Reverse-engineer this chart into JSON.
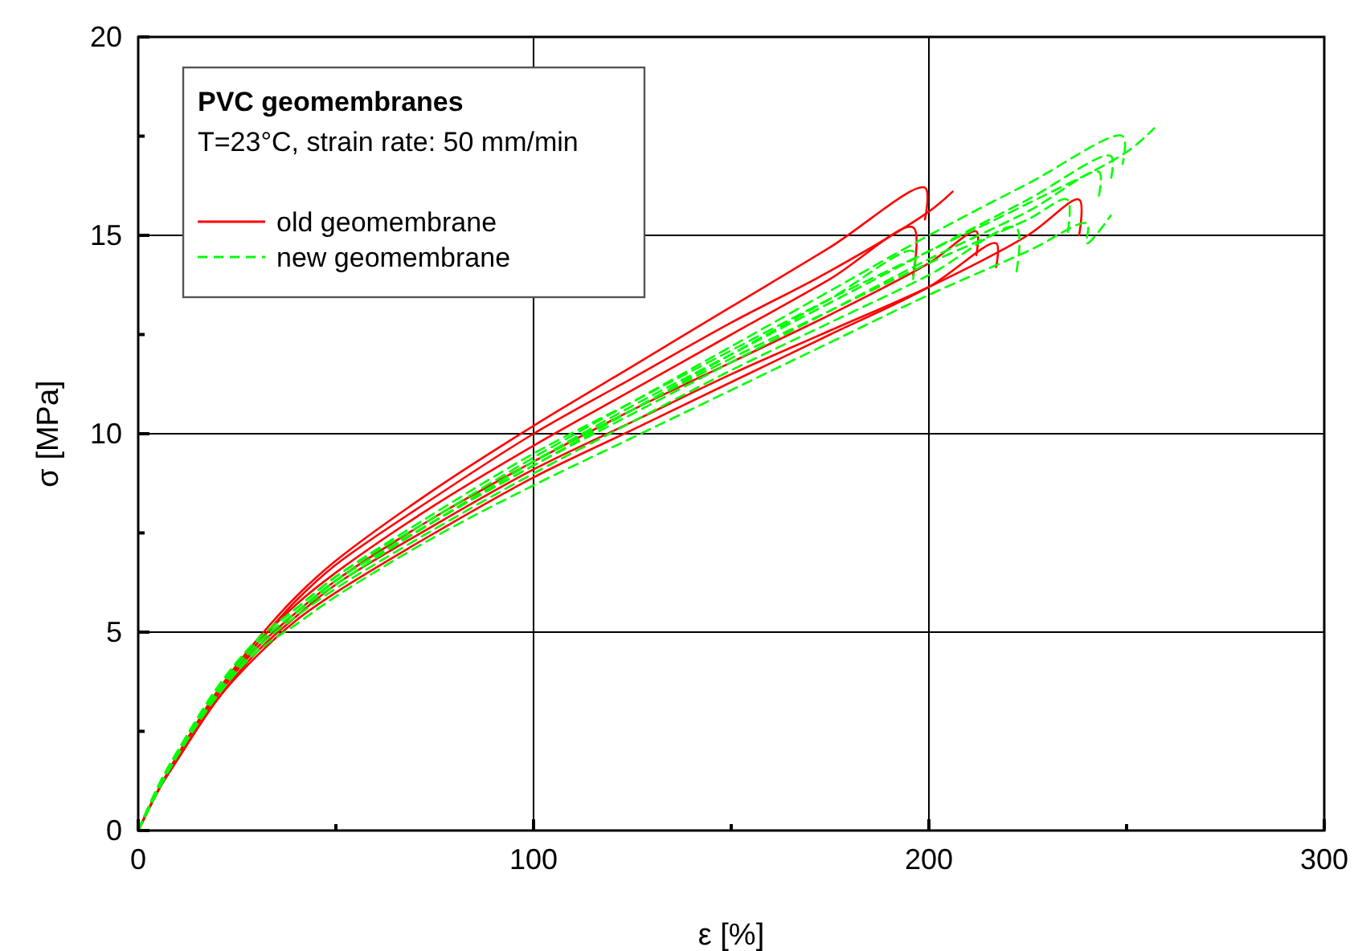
{
  "chart_data": {
    "type": "line",
    "xlabel": "ε [%]",
    "ylabel": "σ [MPa]",
    "legend_title": "PVC geomembranes",
    "annotations": [
      "T=23°C, strain rate: 50 mm/min"
    ],
    "legend": "top left",
    "grid": true,
    "xlim": [
      0,
      300
    ],
    "ylim": [
      0,
      20
    ],
    "xticks": [
      0,
      {
        "value": 50,
        "label": null
      },
      100,
      {
        "value": 150,
        "label": null
      },
      200,
      {
        "value": 250,
        "label": null
      },
      300
    ],
    "yticks": [
      0,
      {
        "value": 2.5,
        "label": null
      },
      5,
      {
        "value": 7.5,
        "label": null
      },
      10,
      {
        "value": 12.5,
        "label": null
      },
      15,
      {
        "value": 17.5,
        "label": null
      },
      20
    ],
    "series": [
      {
        "name": "old geomembrane",
        "color": "#ff0000",
        "line_style": "solid",
        "x": [
          0,
          5,
          10,
          20,
          30,
          40,
          50,
          75,
          100,
          125,
          150,
          175,
          199,
          199
        ],
        "values": [
          0,
          1.0,
          1.9,
          3.5,
          4.8,
          5.9,
          6.8,
          8.6,
          10.2,
          11.7,
          13.2,
          14.7,
          16.2,
          15.4
        ]
      },
      {
        "color": "#ff0000",
        "line_style": "solid",
        "x": [
          0,
          5,
          10,
          20,
          30,
          40,
          50,
          75,
          100,
          125,
          150,
          175,
          200,
          206
        ],
        "values": [
          0,
          1.0,
          1.9,
          3.5,
          4.7,
          5.8,
          6.7,
          8.4,
          10.0,
          11.4,
          12.8,
          14.1,
          15.6,
          16.1
        ]
      },
      {
        "color": "#ff0000",
        "line_style": "solid",
        "x": [
          0,
          5,
          10,
          20,
          30,
          40,
          50,
          75,
          100,
          125,
          150,
          175,
          196,
          196
        ],
        "values": [
          0,
          1.0,
          1.9,
          3.4,
          4.7,
          5.7,
          6.5,
          8.2,
          9.7,
          11.1,
          12.5,
          13.9,
          15.2,
          14.0
        ]
      },
      {
        "color": "#ff0000",
        "line_style": "solid",
        "x": [
          0,
          5,
          10,
          20,
          30,
          40,
          50,
          75,
          100,
          125,
          150,
          175,
          200,
          212,
          212
        ],
        "values": [
          0,
          1.0,
          1.9,
          3.4,
          4.6,
          5.5,
          6.3,
          7.9,
          9.3,
          10.6,
          11.8,
          13.0,
          14.3,
          15.1,
          14.5
        ]
      },
      {
        "color": "#ff0000",
        "line_style": "solid",
        "x": [
          0,
          5,
          10,
          20,
          30,
          40,
          50,
          75,
          100,
          125,
          150,
          175,
          200,
          225,
          238,
          238
        ],
        "values": [
          0,
          1.0,
          1.8,
          3.3,
          4.5,
          5.4,
          6.2,
          7.7,
          9.1,
          10.3,
          11.5,
          12.6,
          13.7,
          15.0,
          15.9,
          15.0
        ]
      },
      {
        "color": "#ff0000",
        "line_style": "solid",
        "x": [
          0,
          5,
          10,
          20,
          30,
          40,
          50,
          75,
          100,
          125,
          150,
          175,
          200,
          217,
          217
        ],
        "values": [
          0,
          1.0,
          1.8,
          3.3,
          4.4,
          5.3,
          6.0,
          7.5,
          8.9,
          10.1,
          11.3,
          12.5,
          13.7,
          14.8,
          14.2
        ]
      },
      {
        "name": "new geomembrane",
        "color": "#00ff00",
        "line_style": "dashed",
        "x": [
          0,
          5,
          10,
          20,
          30,
          40,
          50,
          75,
          100,
          125,
          150,
          175,
          200,
          225,
          250,
          257
        ],
        "values": [
          0,
          1.1,
          2.0,
          3.6,
          4.8,
          5.6,
          6.4,
          8.0,
          9.5,
          10.8,
          12.1,
          13.4,
          14.6,
          15.8,
          17.1,
          17.7
        ]
      },
      {
        "color": "#00ff00",
        "line_style": "dashed",
        "x": [
          0,
          5,
          10,
          20,
          30,
          40,
          50,
          75,
          100,
          125,
          150,
          175,
          200,
          225,
          249,
          249
        ],
        "values": [
          0,
          1.1,
          2.0,
          3.6,
          4.8,
          5.6,
          6.4,
          7.9,
          9.4,
          10.8,
          12.2,
          13.6,
          15.0,
          16.3,
          17.5,
          16.8
        ]
      },
      {
        "color": "#00ff00",
        "line_style": "dashed",
        "x": [
          0,
          5,
          10,
          20,
          30,
          40,
          50,
          75,
          100,
          125,
          150,
          175,
          200,
          225,
          246,
          246
        ],
        "values": [
          0,
          1.1,
          2.0,
          3.5,
          4.7,
          5.5,
          6.3,
          7.8,
          9.3,
          10.7,
          12.0,
          13.3,
          14.6,
          15.9,
          17.0,
          16.4
        ]
      },
      {
        "color": "#00ff00",
        "line_style": "dashed",
        "x": [
          0,
          5,
          10,
          20,
          30,
          40,
          50,
          75,
          100,
          125,
          150,
          175,
          200,
          225,
          243,
          243
        ],
        "values": [
          0,
          1.1,
          2.0,
          3.5,
          4.7,
          5.5,
          6.3,
          7.8,
          9.2,
          10.5,
          11.8,
          13.1,
          14.4,
          15.6,
          16.6,
          16.0
        ]
      },
      {
        "color": "#00ff00",
        "line_style": "dashed",
        "x": [
          0,
          5,
          10,
          20,
          30,
          40,
          50,
          75,
          100,
          125,
          150,
          175,
          200,
          225,
          240,
          240,
          246
        ],
        "values": [
          0,
          1.0,
          1.9,
          3.4,
          4.5,
          5.2,
          5.9,
          7.4,
          8.7,
          9.9,
          11.1,
          12.3,
          13.5,
          14.6,
          15.3,
          14.8,
          15.5
        ]
      },
      {
        "color": "#00ff00",
        "line_style": "dashed",
        "x": [
          0,
          5,
          10,
          20,
          30,
          40,
          50,
          75,
          100,
          125,
          150,
          175,
          200,
          225,
          235,
          235
        ],
        "values": [
          0,
          1.1,
          2.0,
          3.5,
          4.7,
          5.5,
          6.3,
          7.8,
          9.3,
          10.6,
          11.9,
          13.1,
          14.3,
          15.4,
          15.9,
          15.0
        ]
      },
      {
        "color": "#00ff00",
        "line_style": "dashed",
        "x": [
          0,
          5,
          10,
          20,
          30,
          40,
          50,
          75,
          100,
          125,
          150,
          175,
          196,
          196
        ],
        "values": [
          0,
          1.1,
          2.0,
          3.5,
          4.7,
          5.5,
          6.2,
          7.8,
          9.2,
          10.6,
          12.0,
          13.4,
          14.6,
          13.9
        ]
      },
      {
        "color": "#00ff00",
        "line_style": "dashed",
        "x": [
          0,
          5,
          10,
          20,
          30,
          40,
          50,
          75,
          100,
          125,
          150,
          175,
          200,
          222,
          222
        ],
        "values": [
          0,
          1.0,
          1.9,
          3.4,
          4.6,
          5.4,
          6.1,
          7.6,
          9.0,
          10.3,
          11.6,
          12.8,
          14.0,
          15.2,
          14.0
        ]
      }
    ]
  }
}
